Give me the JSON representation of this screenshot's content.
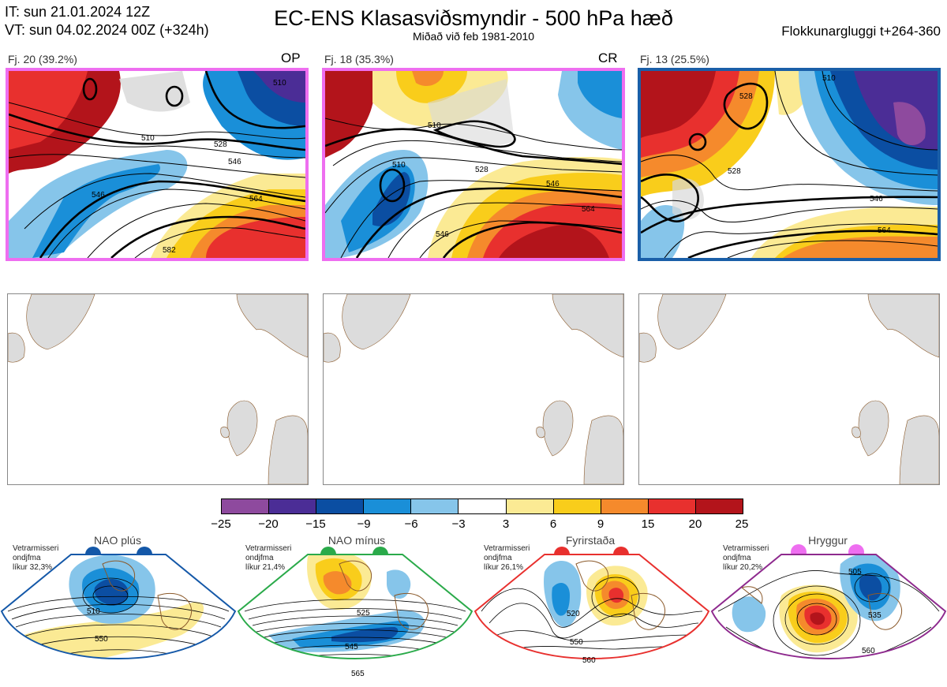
{
  "header": {
    "it_line": "IT: sun 21.01.2024 12Z",
    "vt_line": "VT: sun 04.02.2024 00Z  (+324h)",
    "title": "EC-ENS Klasasviðsmyndir - 500 hPa hæð",
    "subtitle": "Miðað við feb 1981-2010",
    "window": "Flokkunargluggi t+264-360"
  },
  "clusters": [
    {
      "label": "Fj. 20 (39.2%)",
      "tag": "OP",
      "border": "#ee6ef0",
      "isolines": [
        "510",
        "528",
        "546",
        "564",
        "582",
        "546",
        "510"
      ]
    },
    {
      "label": "Fj. 18 (35.3%)",
      "tag": "CR",
      "border": "#ee6ef0",
      "isolines": [
        "510",
        "528",
        "546",
        "564",
        "546",
        "510"
      ]
    },
    {
      "label": "Fj. 13 (25.5%)",
      "tag": "",
      "border": "#1a5fa8",
      "isolines": [
        "528",
        "546",
        "564",
        "528",
        "510"
      ]
    }
  ],
  "colorbar": {
    "colors": [
      "#8e4a9e",
      "#4b2d96",
      "#0b4ea2",
      "#1a8fd8",
      "#86c5ea",
      "#ffffff",
      "#fbea94",
      "#f9cd1b",
      "#f58a2c",
      "#e8302e",
      "#b3141b"
    ],
    "labels": [
      "−25",
      "−20",
      "−15",
      "−9",
      "−6",
      "−3",
      "3",
      "6",
      "9",
      "15",
      "20",
      "25"
    ]
  },
  "regimes": [
    {
      "title": "NAO plús",
      "line1": "Vetrarmisseri",
      "line2": "ondjfma",
      "line3": "líkur 32,3%",
      "color": "#1458a8",
      "isolines": [
        "510",
        "550"
      ]
    },
    {
      "title": "NAO mínus",
      "line1": "Vetrarmisseri",
      "line2": "ondjfma",
      "line3": "líkur 21,4%",
      "color": "#2aaa4a",
      "isolines": [
        "525",
        "545",
        "565"
      ]
    },
    {
      "title": "Fyrirstaða",
      "line1": "Vetrarmisseri",
      "line2": "ondjfma",
      "line3": "líkur 26,1%",
      "color": "#e8302e",
      "isolines": [
        "520",
        "550",
        "560"
      ]
    },
    {
      "title": "Hryggur",
      "line1": "Vetrarmisseri",
      "line2": "ondjfma",
      "line3": "líkur 20,2%",
      "color": "#8e2a8e",
      "isolines": [
        "505",
        "535",
        "560"
      ]
    }
  ]
}
